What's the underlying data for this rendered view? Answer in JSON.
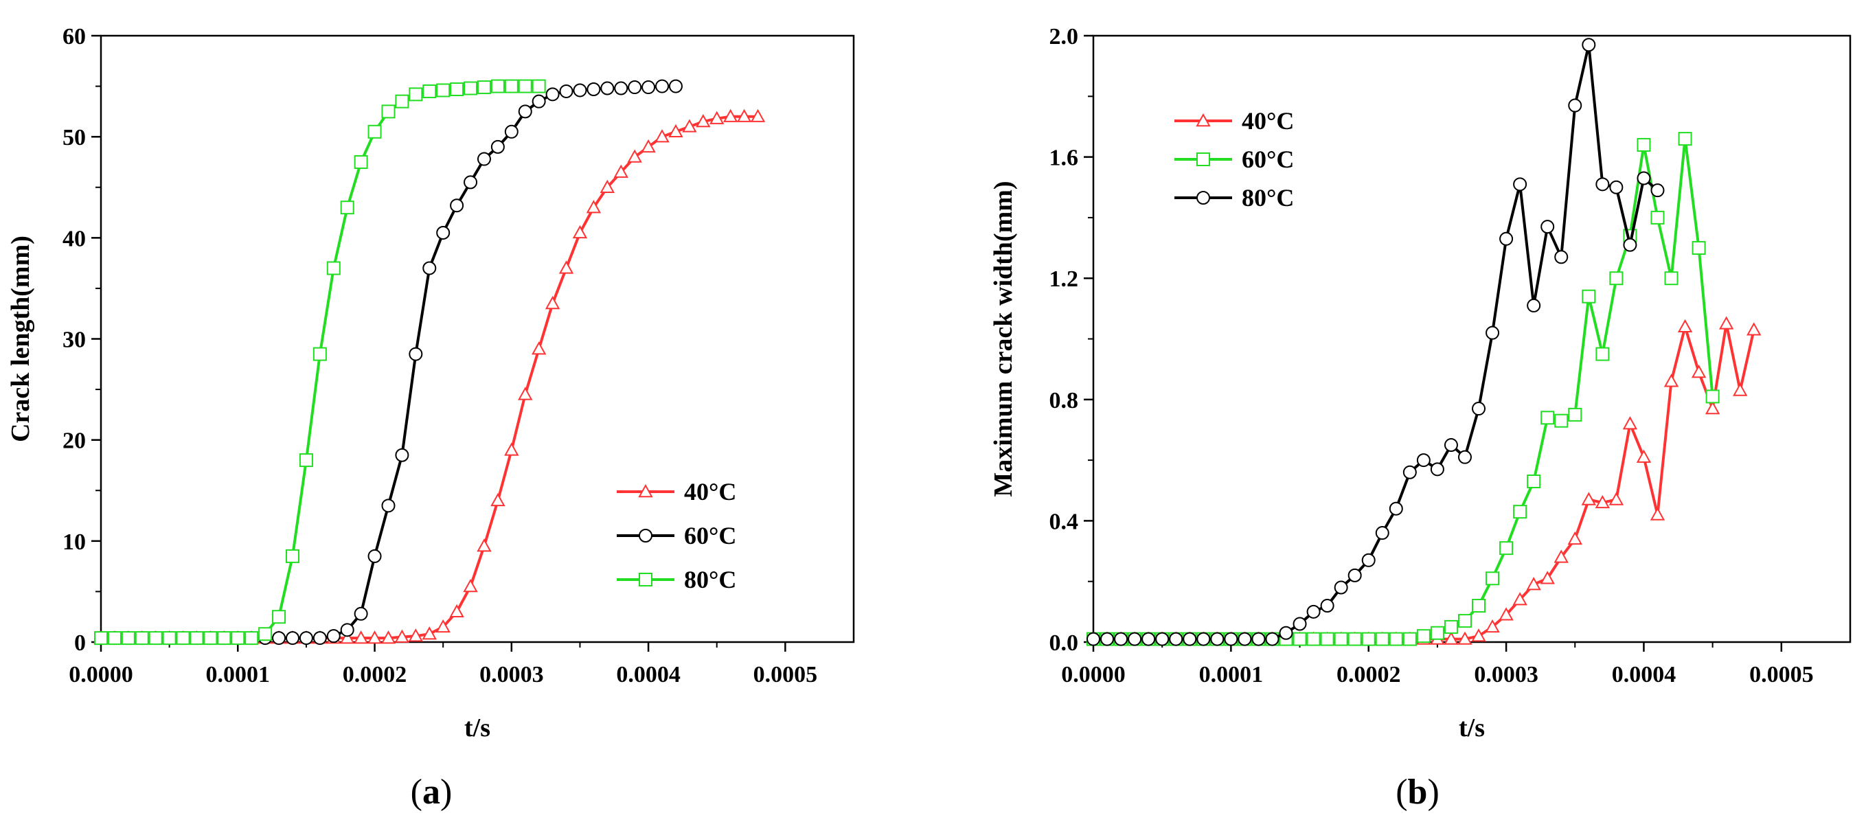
{
  "chart_data": [
    {
      "type": "line",
      "panel": "a",
      "caption": "(a)",
      "caption_letter": "a",
      "xlabel": "t/s",
      "ylabel": "Crack length(mm)",
      "xlim": [
        0,
        0.00055
      ],
      "ylim": [
        0,
        60
      ],
      "xticks": [
        0,
        0.0001,
        0.0002,
        0.0003,
        0.0004,
        0.0005
      ],
      "xtick_labels": [
        "0.0000",
        "0.0001",
        "0.0002",
        "0.0003",
        "0.0004",
        "0.0005"
      ],
      "yticks": [
        0,
        10,
        20,
        30,
        40,
        50,
        60
      ],
      "ytick_labels": [
        "0",
        "10",
        "20",
        "30",
        "40",
        "50",
        "60"
      ],
      "legend_position": "center-right",
      "series": [
        {
          "name": "40°C",
          "color": "#ff3333",
          "marker": "triangle",
          "x": [
            0,
            1e-05,
            2e-05,
            3e-05,
            4e-05,
            5e-05,
            6e-05,
            7e-05,
            8e-05,
            9e-05,
            0.0001,
            0.00011,
            0.00012,
            0.00013,
            0.00014,
            0.00015,
            0.00016,
            0.00017,
            0.00018,
            0.00019,
            0.0002,
            0.00021,
            0.00022,
            0.00023,
            0.00024,
            0.00025,
            0.00026,
            0.00027,
            0.00028,
            0.00029,
            0.0003,
            0.00031,
            0.00032,
            0.00033,
            0.00034,
            0.00035,
            0.00036,
            0.00037,
            0.00038,
            0.00039,
            0.0004,
            0.00041,
            0.00042,
            0.00043,
            0.00044,
            0.00045,
            0.00046,
            0.00047,
            0.00048
          ],
          "y": [
            0.4,
            0.4,
            0.4,
            0.4,
            0.4,
            0.4,
            0.4,
            0.4,
            0.4,
            0.4,
            0.4,
            0.4,
            0.4,
            0.4,
            0.4,
            0.4,
            0.4,
            0.4,
            0.4,
            0.4,
            0.4,
            0.4,
            0.5,
            0.6,
            0.8,
            1.5,
            3.0,
            5.5,
            9.5,
            14.0,
            19.0,
            24.5,
            29.0,
            33.5,
            37.0,
            40.5,
            43.0,
            45.0,
            46.5,
            48.0,
            49.0,
            50.0,
            50.5,
            51.0,
            51.5,
            51.8,
            52.0,
            52.0,
            52.0
          ]
        },
        {
          "name": "60°C",
          "color": "#000000",
          "marker": "circle",
          "x": [
            0,
            1e-05,
            2e-05,
            3e-05,
            4e-05,
            5e-05,
            6e-05,
            7e-05,
            8e-05,
            9e-05,
            0.0001,
            0.00011,
            0.00012,
            0.00013,
            0.00014,
            0.00015,
            0.00016,
            0.00017,
            0.00018,
            0.00019,
            0.0002,
            0.00021,
            0.00022,
            0.00023,
            0.00024,
            0.00025,
            0.00026,
            0.00027,
            0.00028,
            0.00029,
            0.0003,
            0.00031,
            0.00032,
            0.00033,
            0.00034,
            0.00035,
            0.00036,
            0.00037,
            0.00038,
            0.00039,
            0.0004,
            0.00041,
            0.00042
          ],
          "y": [
            0.4,
            0.4,
            0.4,
            0.4,
            0.4,
            0.4,
            0.4,
            0.4,
            0.4,
            0.4,
            0.4,
            0.4,
            0.4,
            0.4,
            0.4,
            0.4,
            0.4,
            0.6,
            1.2,
            2.8,
            8.5,
            13.5,
            18.5,
            28.5,
            37.0,
            40.5,
            43.2,
            45.5,
            47.8,
            49.0,
            50.5,
            52.5,
            53.5,
            54.2,
            54.5,
            54.6,
            54.7,
            54.8,
            54.8,
            54.9,
            54.9,
            55.0,
            55.0
          ]
        },
        {
          "name": "80°C",
          "color": "#22dd22",
          "marker": "square",
          "x": [
            0,
            1e-05,
            2e-05,
            3e-05,
            4e-05,
            5e-05,
            6e-05,
            7e-05,
            8e-05,
            9e-05,
            0.0001,
            0.00011,
            0.00012,
            0.00013,
            0.00014,
            0.00015,
            0.00016,
            0.00017,
            0.00018,
            0.00019,
            0.0002,
            0.00021,
            0.00022,
            0.00023,
            0.00024,
            0.00025,
            0.00026,
            0.00027,
            0.00028,
            0.00029,
            0.0003,
            0.00031,
            0.00032
          ],
          "y": [
            0.4,
            0.4,
            0.4,
            0.4,
            0.4,
            0.4,
            0.4,
            0.4,
            0.4,
            0.4,
            0.4,
            0.4,
            0.8,
            2.5,
            8.5,
            18.0,
            28.5,
            37.0,
            43.0,
            47.5,
            50.5,
            52.5,
            53.5,
            54.2,
            54.5,
            54.6,
            54.7,
            54.8,
            54.9,
            55.0,
            55.0,
            55.0,
            55.0
          ]
        }
      ]
    },
    {
      "type": "line",
      "panel": "b",
      "caption": "(b)",
      "caption_letter": "b",
      "xlabel": "t/s",
      "ylabel": "Maximum crack width(mm)",
      "xlim": [
        0,
        0.00055
      ],
      "ylim": [
        0,
        2.0
      ],
      "xticks": [
        0,
        0.0001,
        0.0002,
        0.0003,
        0.0004,
        0.0005
      ],
      "xtick_labels": [
        "0.0000",
        "0.0001",
        "0.0002",
        "0.0003",
        "0.0004",
        "0.0005"
      ],
      "yticks": [
        0,
        0.4,
        0.8,
        1.2,
        1.6,
        2.0
      ],
      "ytick_labels": [
        "0.0",
        "0.4",
        "0.8",
        "1.2",
        "1.6",
        "2.0"
      ],
      "legend_position": "top-left",
      "series": [
        {
          "name": "40°C",
          "color": "#ff3333",
          "marker": "triangle",
          "x": [
            0,
            1e-05,
            2e-05,
            3e-05,
            4e-05,
            5e-05,
            6e-05,
            7e-05,
            8e-05,
            9e-05,
            0.0001,
            0.00011,
            0.00012,
            0.00013,
            0.00014,
            0.00015,
            0.00016,
            0.00017,
            0.00018,
            0.00019,
            0.0002,
            0.00021,
            0.00022,
            0.00023,
            0.00024,
            0.00025,
            0.00026,
            0.00027,
            0.00028,
            0.00029,
            0.0003,
            0.00031,
            0.00032,
            0.00033,
            0.00034,
            0.00035,
            0.00036,
            0.00037,
            0.00038,
            0.00039,
            0.0004,
            0.00041,
            0.00042,
            0.00043,
            0.00044,
            0.00045,
            0.00046,
            0.00047,
            0.00048
          ],
          "y": [
            0.01,
            0.01,
            0.01,
            0.01,
            0.01,
            0.01,
            0.01,
            0.01,
            0.01,
            0.01,
            0.01,
            0.01,
            0.01,
            0.01,
            0.01,
            0.01,
            0.01,
            0.01,
            0.01,
            0.01,
            0.01,
            0.01,
            0.01,
            0.01,
            0.01,
            0.01,
            0.01,
            0.01,
            0.02,
            0.05,
            0.09,
            0.14,
            0.19,
            0.21,
            0.28,
            0.34,
            0.47,
            0.46,
            0.47,
            0.72,
            0.61,
            0.42,
            0.86,
            1.04,
            0.89,
            0.77,
            1.05,
            0.83,
            1.03
          ]
        },
        {
          "name": "60°C",
          "color": "#22dd22",
          "marker": "square",
          "x": [
            0,
            1e-05,
            2e-05,
            3e-05,
            4e-05,
            5e-05,
            6e-05,
            7e-05,
            8e-05,
            9e-05,
            0.0001,
            0.00011,
            0.00012,
            0.00013,
            0.00014,
            0.00015,
            0.00016,
            0.00017,
            0.00018,
            0.00019,
            0.0002,
            0.00021,
            0.00022,
            0.00023,
            0.00024,
            0.00025,
            0.00026,
            0.00027,
            0.00028,
            0.00029,
            0.0003,
            0.00031,
            0.00032,
            0.00033,
            0.00034,
            0.00035,
            0.00036,
            0.00037,
            0.00038,
            0.00039,
            0.0004,
            0.00041,
            0.00042,
            0.00043,
            0.00044,
            0.00045
          ],
          "y": [
            0.01,
            0.01,
            0.01,
            0.01,
            0.01,
            0.01,
            0.01,
            0.01,
            0.01,
            0.01,
            0.01,
            0.01,
            0.01,
            0.01,
            0.01,
            0.01,
            0.01,
            0.01,
            0.01,
            0.01,
            0.01,
            0.01,
            0.01,
            0.01,
            0.02,
            0.03,
            0.05,
            0.07,
            0.12,
            0.21,
            0.31,
            0.43,
            0.53,
            0.74,
            0.73,
            0.75,
            1.14,
            0.95,
            1.2,
            1.34,
            1.64,
            1.4,
            1.2,
            1.66,
            1.3,
            0.81
          ]
        },
        {
          "name": "80°C",
          "color": "#000000",
          "marker": "circle",
          "x": [
            0,
            1e-05,
            2e-05,
            3e-05,
            4e-05,
            5e-05,
            6e-05,
            7e-05,
            8e-05,
            9e-05,
            0.0001,
            0.00011,
            0.00012,
            0.00013,
            0.00014,
            0.00015,
            0.00016,
            0.00017,
            0.00018,
            0.00019,
            0.0002,
            0.00021,
            0.00022,
            0.00023,
            0.00024,
            0.00025,
            0.00026,
            0.00027,
            0.00028,
            0.00029,
            0.0003,
            0.00031,
            0.00032,
            0.00033,
            0.00034,
            0.00035,
            0.00036,
            0.00037,
            0.00038,
            0.00039,
            0.0004,
            0.00041
          ],
          "y": [
            0.01,
            0.01,
            0.01,
            0.01,
            0.01,
            0.01,
            0.01,
            0.01,
            0.01,
            0.01,
            0.01,
            0.01,
            0.01,
            0.01,
            0.03,
            0.06,
            0.1,
            0.12,
            0.18,
            0.22,
            0.27,
            0.36,
            0.44,
            0.56,
            0.6,
            0.57,
            0.65,
            0.61,
            0.77,
            1.02,
            1.33,
            1.51,
            1.11,
            1.37,
            1.27,
            1.77,
            1.97,
            1.51,
            1.5,
            1.31,
            1.53,
            1.49
          ]
        }
      ]
    }
  ]
}
